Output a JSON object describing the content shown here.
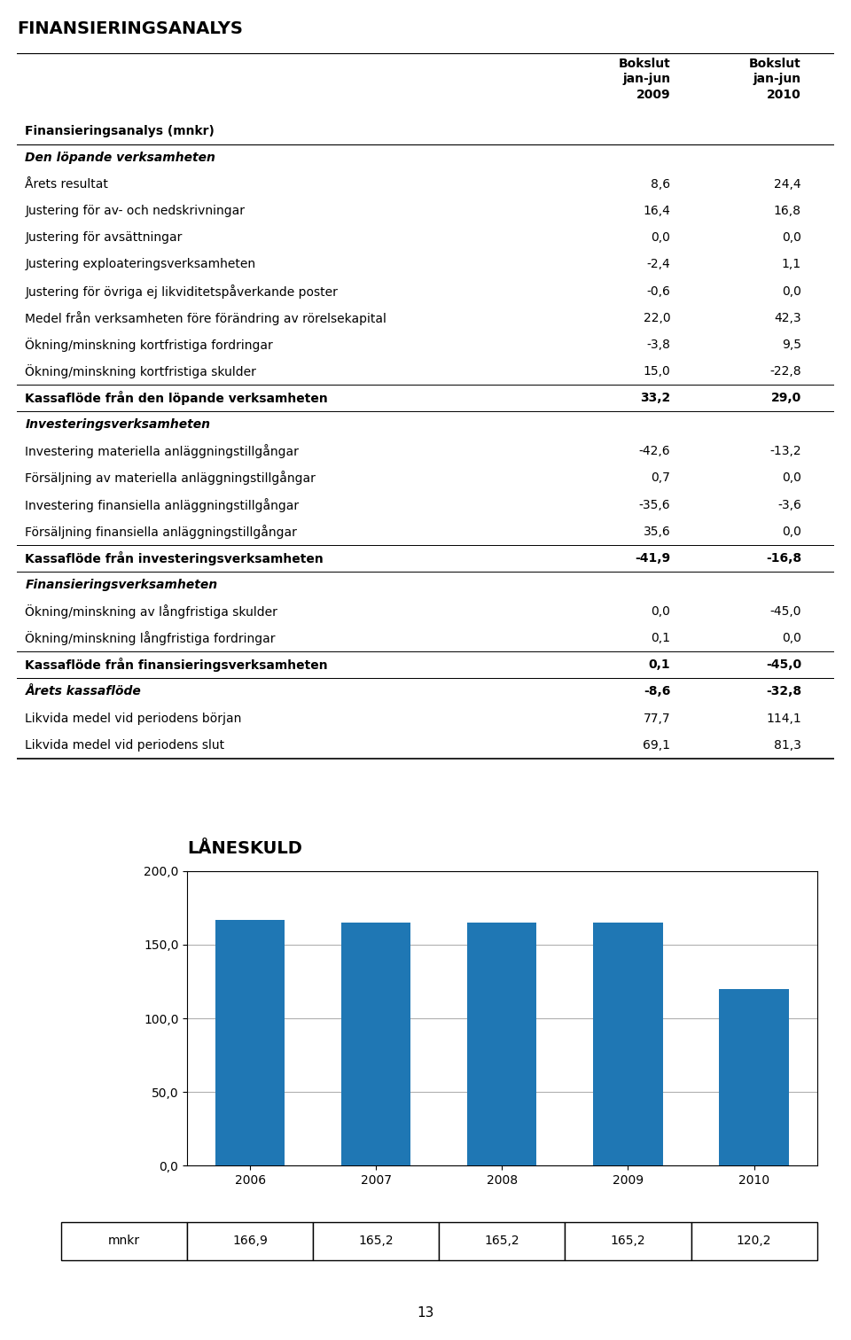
{
  "chart_data": [
    {
      "type": "table",
      "title": "FINANSIERINGSANALYS",
      "header": "Finansieringsanalys (mnkr)",
      "columns": [
        "Bokslut\njan-jun\n2009",
        "Bokslut\njan-jun\n2010"
      ],
      "rows": [
        {
          "label": "Den löpande verksamheten",
          "style": "section"
        },
        {
          "label": "Årets resultat",
          "values": [
            "8,6",
            "24,4"
          ],
          "style": "normal"
        },
        {
          "label": "Justering för av- och nedskrivningar",
          "values": [
            "16,4",
            "16,8"
          ],
          "style": "normal"
        },
        {
          "label": "Justering för avsättningar",
          "values": [
            "0,0",
            "0,0"
          ],
          "style": "normal"
        },
        {
          "label": "Justering exploateringsverksamheten",
          "values": [
            "-2,4",
            "1,1"
          ],
          "style": "normal"
        },
        {
          "label": "Justering för övriga ej likviditetspåverkande poster",
          "values": [
            "-0,6",
            "0,0"
          ],
          "style": "normal"
        },
        {
          "label": "Medel från verksamheten före förändring av rörelsekapital",
          "values": [
            "22,0",
            "42,3"
          ],
          "style": "normal"
        },
        {
          "label": "Ökning/minskning kortfristiga fordringar",
          "values": [
            "-3,8",
            "9,5"
          ],
          "style": "normal"
        },
        {
          "label": "Ökning/minskning kortfristiga skulder",
          "values": [
            "15,0",
            "-22,8"
          ],
          "style": "normal"
        },
        {
          "label": "Kassaflöde från den löpande verksamheten",
          "values": [
            "33,2",
            "29,0"
          ],
          "style": "bold"
        },
        {
          "label": "Investeringsverksamheten",
          "style": "section"
        },
        {
          "label": "Investering materiella anläggningstillgångar",
          "values": [
            "-42,6",
            "-13,2"
          ],
          "style": "normal"
        },
        {
          "label": "Försäljning av materiella anläggningstillgångar",
          "values": [
            "0,7",
            "0,0"
          ],
          "style": "normal"
        },
        {
          "label": "Investering finansiella anläggningstillgångar",
          "values": [
            "-35,6",
            "-3,6"
          ],
          "style": "normal"
        },
        {
          "label": "Försäljning finansiella anläggningstillgångar",
          "values": [
            "35,6",
            "0,0"
          ],
          "style": "normal"
        },
        {
          "label": "Kassaflöde från investeringsverksamheten",
          "values": [
            "-41,9",
            "-16,8"
          ],
          "style": "bold"
        },
        {
          "label": "Finansieringsverksamheten",
          "style": "section"
        },
        {
          "label": "Ökning/minskning av långfristiga skulder",
          "values": [
            "0,0",
            "-45,0"
          ],
          "style": "normal"
        },
        {
          "label": "Ökning/minskning långfristiga fordringar",
          "values": [
            "0,1",
            "0,0"
          ],
          "style": "normal"
        },
        {
          "label": "Kassaflöde från finansieringsverksamheten",
          "values": [
            "0,1",
            "-45,0"
          ],
          "style": "bold"
        },
        {
          "label": "Årets kassaflöde",
          "values": [
            "-8,6",
            "-32,8"
          ],
          "style": "bold_italic"
        },
        {
          "label": "Likvida medel vid periodens början",
          "values": [
            "77,7",
            "114,1"
          ],
          "style": "normal"
        },
        {
          "label": "Likvida medel vid periodens slut",
          "values": [
            "69,1",
            "81,3"
          ],
          "style": "normal"
        }
      ]
    },
    {
      "type": "bar",
      "title": "LÅNESKULD",
      "categories": [
        "2006",
        "2007",
        "2008",
        "2009",
        "2010"
      ],
      "values": [
        166.9,
        165.2,
        165.2,
        165.2,
        120.2
      ],
      "row_label": "mnkr",
      "value_labels": [
        "166,9",
        "165,2",
        "165,2",
        "165,2",
        "120,2"
      ],
      "ylim": [
        0,
        200
      ],
      "yticks": [
        {
          "value": 0,
          "label": "0,0"
        },
        {
          "value": 50,
          "label": "50,0"
        },
        {
          "value": 100,
          "label": "100,0"
        },
        {
          "value": 150,
          "label": "150,0"
        },
        {
          "value": 200,
          "label": "200,0"
        }
      ],
      "grid": true
    }
  ],
  "page_number": "13"
}
